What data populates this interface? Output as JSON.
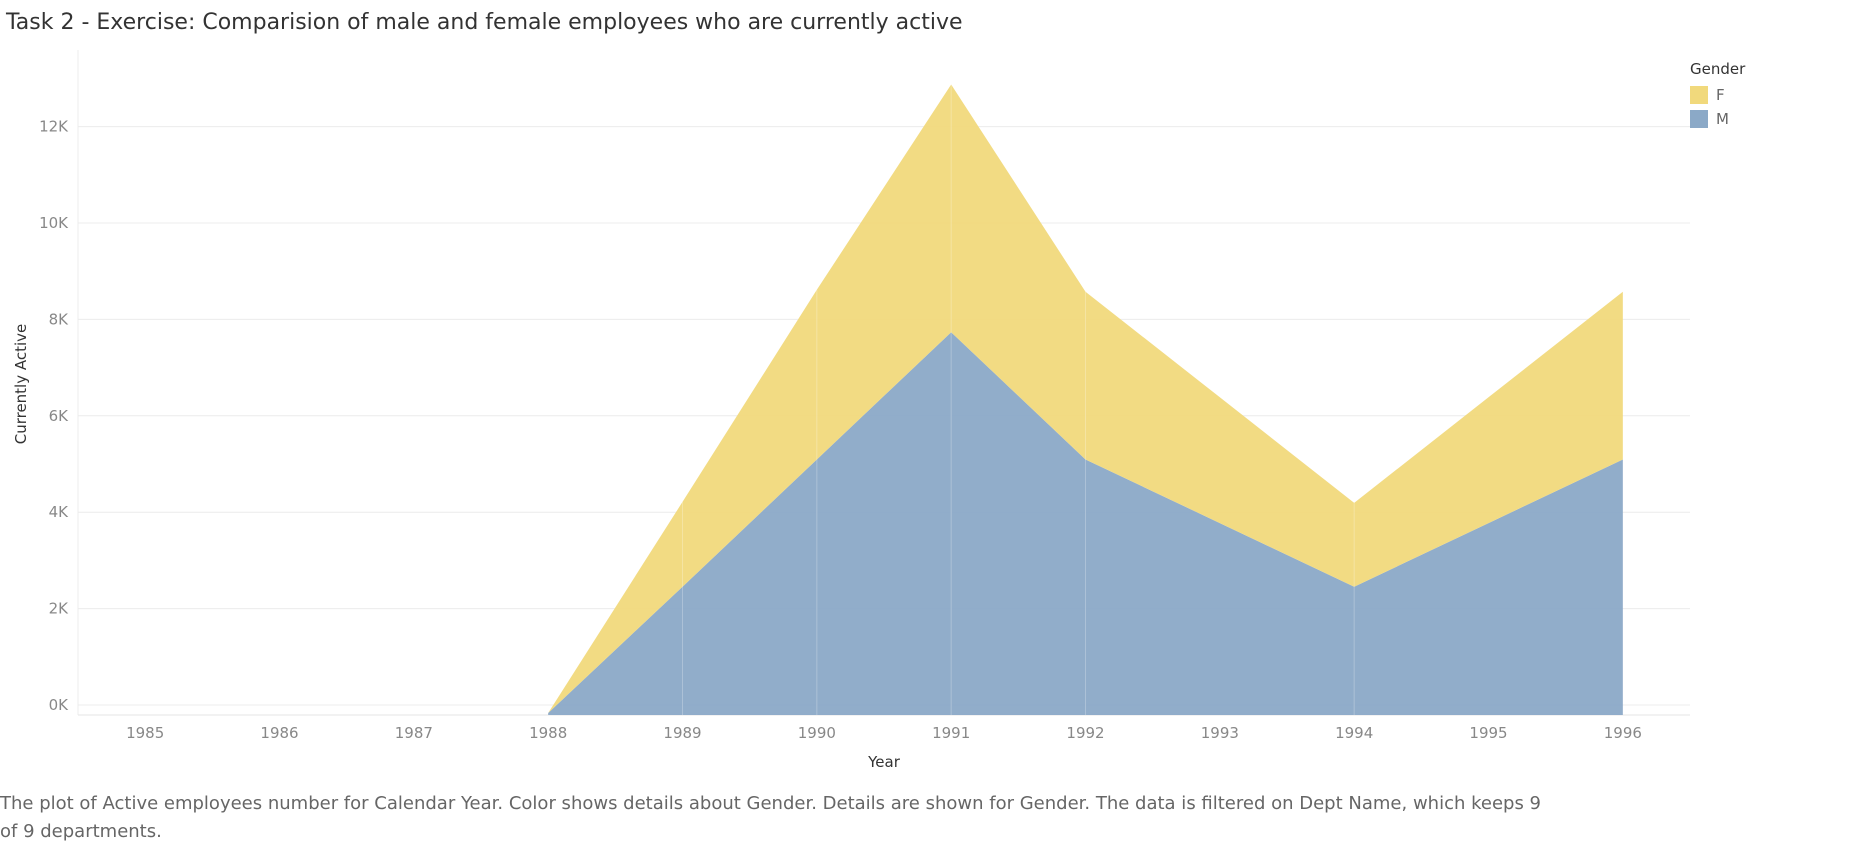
{
  "title": "Task 2 - Exercise: Comparision of male and female employees who are currently active",
  "caption": "The plot of  Active employees number for Calendar Year.  Color shows details about Gender.  Details are shown for Gender. The data is filtered on Dept Name, which keeps 9 of 9 departments.",
  "legend": {
    "title": "Gender",
    "items": [
      {
        "label": "F",
        "color": "#f1d97c"
      },
      {
        "label": "M",
        "color": "#8ba9c7"
      }
    ]
  },
  "chart_data": {
    "type": "area",
    "stacked": true,
    "x": [
      "1985",
      "1986",
      "1987",
      "1988",
      "1989",
      "1990",
      "1991",
      "1992",
      "1993",
      "1994",
      "1995",
      "1996"
    ],
    "series": [
      {
        "name": "M",
        "color": "#8ba9c7",
        "values": [
          null,
          null,
          null,
          0,
          2620,
          5260,
          7900,
          5260,
          null,
          2620,
          null,
          5260
        ]
      },
      {
        "name": "F",
        "color": "#f1d97c",
        "values": [
          null,
          null,
          null,
          0,
          1760,
          3520,
          5140,
          3480,
          null,
          1740,
          null,
          3480
        ]
      }
    ],
    "xlabel": "Year",
    "ylabel": "Currently Active",
    "yticks": [
      "0K",
      "2K",
      "4K",
      "6K",
      "8K",
      "10K",
      "12K"
    ],
    "ylim": [
      0,
      13000
    ],
    "grid": true,
    "legend_position": "top-right"
  }
}
